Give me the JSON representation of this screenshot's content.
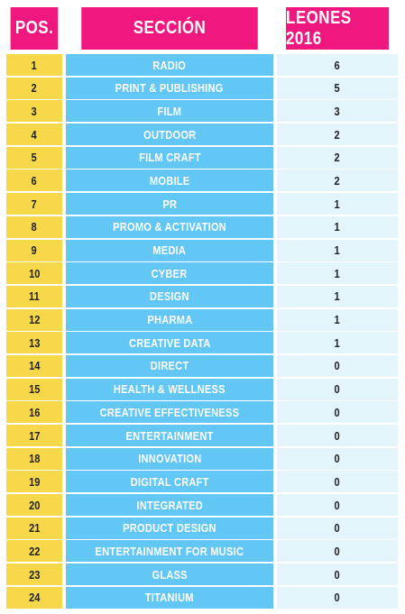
{
  "header": {
    "pos": "POS.",
    "section": "SECCIÓN",
    "lions": "LEONES 2016"
  },
  "rows": [
    {
      "pos": "1",
      "section": "RADIO",
      "lions": "6"
    },
    {
      "pos": "2",
      "section": "PRINT & PUBLISHING",
      "lions": "5"
    },
    {
      "pos": "3",
      "section": "FILM",
      "lions": "3"
    },
    {
      "pos": "4",
      "section": "OUTDOOR",
      "lions": "2"
    },
    {
      "pos": "5",
      "section": "FILM CRAFT",
      "lions": "2"
    },
    {
      "pos": "6",
      "section": "MOBILE",
      "lions": "2"
    },
    {
      "pos": "7",
      "section": "PR",
      "lions": "1"
    },
    {
      "pos": "8",
      "section": "PROMO & ACTIVATION",
      "lions": "1"
    },
    {
      "pos": "9",
      "section": "MEDIA",
      "lions": "1"
    },
    {
      "pos": "10",
      "section": "CYBER",
      "lions": "1"
    },
    {
      "pos": "11",
      "section": "DESIGN",
      "lions": "1"
    },
    {
      "pos": "12",
      "section": "PHARMA",
      "lions": "1"
    },
    {
      "pos": "13",
      "section": "CREATIVE DATA",
      "lions": "1"
    },
    {
      "pos": "14",
      "section": "DIRECT",
      "lions": "0"
    },
    {
      "pos": "15",
      "section": "HEALTH & WELLNESS",
      "lions": "0"
    },
    {
      "pos": "16",
      "section": "CREATIVE EFFECTIVENESS",
      "lions": "0"
    },
    {
      "pos": "17",
      "section": "ENTERTAINMENT",
      "lions": "0"
    },
    {
      "pos": "18",
      "section": "INNOVATION",
      "lions": "0"
    },
    {
      "pos": "19",
      "section": "DIGITAL CRAFT",
      "lions": "0"
    },
    {
      "pos": "20",
      "section": "INTEGRATED",
      "lions": "0"
    },
    {
      "pos": "21",
      "section": "PRODUCT DESIGN",
      "lions": "0"
    },
    {
      "pos": "22",
      "section": "ENTERTAINMENT FOR MUSIC",
      "lions": "0"
    },
    {
      "pos": "23",
      "section": "GLASS",
      "lions": "0"
    },
    {
      "pos": "24",
      "section": "TITANIUM",
      "lions": "0"
    }
  ],
  "colors": {
    "header_bg": "#f0177f",
    "pos_bg": "#f7d84a",
    "section_bg": "#62c7f5",
    "lions_bg": "#e3f4fb"
  }
}
